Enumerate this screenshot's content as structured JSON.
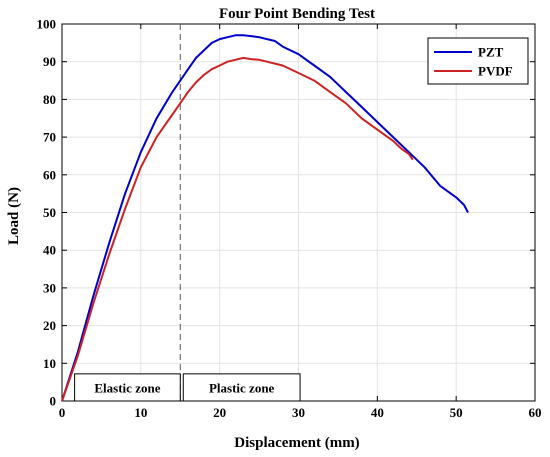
{
  "chart_data": {
    "type": "line",
    "title": "Four Point Bending Test",
    "xlabel": "Displacement (mm)",
    "ylabel": "Load (N)",
    "xlim": [
      0,
      60
    ],
    "ylim": [
      0,
      100
    ],
    "xticks": [
      0,
      10,
      20,
      30,
      40,
      50,
      60
    ],
    "yticks": [
      0,
      10,
      20,
      30,
      40,
      50,
      60,
      70,
      80,
      90,
      100
    ],
    "grid": true,
    "legend_position": "top-right",
    "series": [
      {
        "name": "PZT",
        "color": "#0000cc",
        "x": [
          0,
          2,
          4,
          6,
          8,
          10,
          12,
          14,
          15,
          16,
          17,
          18,
          19,
          20,
          21,
          22,
          23,
          24,
          25,
          26,
          27,
          28,
          30,
          32,
          34,
          36,
          38,
          40,
          42,
          44,
          46,
          48,
          50,
          51,
          51.5
        ],
        "y": [
          0,
          13,
          28,
          42,
          55,
          66,
          75,
          82,
          85,
          88,
          91,
          93,
          95,
          96,
          96.5,
          97,
          97,
          96.8,
          96.5,
          96,
          95.5,
          94,
          92,
          89,
          86,
          82,
          78,
          74,
          70,
          66,
          62,
          57,
          54,
          52,
          50
        ]
      },
      {
        "name": "PVDF",
        "color": "#cc2222",
        "x": [
          0,
          2,
          4,
          6,
          8,
          10,
          12,
          14,
          15,
          16,
          17,
          18,
          19,
          20,
          21,
          22,
          23,
          24,
          25,
          26,
          27,
          28,
          30,
          32,
          34,
          36,
          38,
          40,
          42,
          43,
          44,
          44.5
        ],
        "y": [
          0,
          12,
          26,
          39,
          51,
          62,
          70,
          76,
          79,
          82,
          84.5,
          86.5,
          88,
          89,
          90,
          90.5,
          91,
          90.7,
          90.5,
          90,
          89.5,
          89,
          87,
          85,
          82,
          79,
          75,
          72,
          69,
          67,
          65.5,
          64
        ]
      }
    ],
    "annotations": {
      "boundary_x": 15,
      "elastic_label": "Elastic zone",
      "plastic_label": "Plastic zone"
    }
  }
}
